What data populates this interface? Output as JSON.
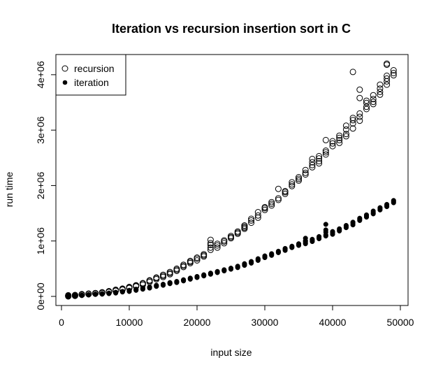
{
  "chart_data": {
    "type": "scatter",
    "title": "Iteration vs recursion insertion sort in C",
    "xlabel": "input size",
    "ylabel": "run time",
    "xlim": [
      0,
      50000
    ],
    "ylim": [
      0,
      4200000
    ],
    "xticks": [
      0,
      10000,
      20000,
      30000,
      40000,
      50000
    ],
    "xtick_labels": [
      "0",
      "10000",
      "20000",
      "30000",
      "40000",
      "50000"
    ],
    "yticks": [
      0,
      1000000,
      2000000,
      3000000,
      4000000
    ],
    "ytick_labels": [
      "0e+00",
      "1e+06",
      "2e+06",
      "3e+06",
      "4e+06"
    ],
    "grid": false,
    "legend_position": "top-left",
    "series": [
      {
        "name": "recursion",
        "marker": "open-circle",
        "x": [
          1000,
          1000,
          1000,
          2000,
          2000,
          2000,
          3000,
          3000,
          3000,
          4000,
          4000,
          4000,
          5000,
          5000,
          5000,
          6000,
          6000,
          6000,
          7000,
          7000,
          7000,
          8000,
          8000,
          8000,
          9000,
          9000,
          9000,
          10000,
          10000,
          10000,
          11000,
          11000,
          11000,
          12000,
          12000,
          12000,
          13000,
          13000,
          13000,
          14000,
          14000,
          14000,
          15000,
          15000,
          15000,
          16000,
          16000,
          16000,
          17000,
          17000,
          17000,
          18000,
          18000,
          18000,
          19000,
          19000,
          19000,
          20000,
          20000,
          20000,
          21000,
          21000,
          21000,
          22000,
          22000,
          22000,
          22000,
          22000,
          23000,
          23000,
          23000,
          24000,
          24000,
          24000,
          25000,
          25000,
          25000,
          26000,
          26000,
          26000,
          27000,
          27000,
          27000,
          27000,
          28000,
          28000,
          28000,
          29000,
          29000,
          29000,
          30000,
          30000,
          30000,
          31000,
          31000,
          31000,
          32000,
          32000,
          32000,
          33000,
          33000,
          33000,
          34000,
          34000,
          34000,
          35000,
          35000,
          35000,
          36000,
          36000,
          36000,
          37000,
          37000,
          37000,
          37000,
          38000,
          38000,
          38000,
          38000,
          39000,
          39000,
          39000,
          39000,
          40000,
          40000,
          40000,
          41000,
          41000,
          41000,
          41000,
          42000,
          42000,
          42000,
          42000,
          43000,
          43000,
          43000,
          43000,
          43000,
          44000,
          44000,
          44000,
          44000,
          44000,
          45000,
          45000,
          45000,
          45000,
          46000,
          46000,
          46000,
          46000,
          47000,
          47000,
          47000,
          47000,
          48000,
          48000,
          48000,
          48000,
          48000,
          48000,
          49000,
          49000,
          49000
        ],
        "y": [
          0,
          10000,
          20000,
          10000,
          20000,
          25000,
          30000,
          35000,
          40000,
          40000,
          45000,
          50000,
          50000,
          55000,
          60000,
          60000,
          70000,
          75000,
          80000,
          90000,
          95000,
          100000,
          110000,
          120000,
          120000,
          130000,
          140000,
          150000,
          160000,
          170000,
          180000,
          190000,
          200000,
          210000,
          230000,
          240000,
          260000,
          280000,
          290000,
          310000,
          330000,
          340000,
          350000,
          370000,
          390000,
          400000,
          420000,
          440000,
          460000,
          480000,
          500000,
          530000,
          550000,
          570000,
          600000,
          620000,
          640000,
          650000,
          680000,
          700000,
          720000,
          740000,
          760000,
          840000,
          880000,
          930000,
          960000,
          1020000,
          880000,
          920000,
          950000,
          960000,
          990000,
          1010000,
          1050000,
          1070000,
          1090000,
          1130000,
          1150000,
          1170000,
          1220000,
          1240000,
          1260000,
          1280000,
          1330000,
          1370000,
          1400000,
          1420000,
          1460000,
          1520000,
          1560000,
          1590000,
          1610000,
          1640000,
          1670000,
          1700000,
          1740000,
          1770000,
          1940000,
          1850000,
          1880000,
          1900000,
          1990000,
          2020000,
          2060000,
          2090000,
          2120000,
          2150000,
          2200000,
          2230000,
          2280000,
          2330000,
          2370000,
          2420000,
          2480000,
          2400000,
          2440000,
          2490000,
          2530000,
          2560000,
          2600000,
          2630000,
          2820000,
          2710000,
          2760000,
          2800000,
          2770000,
          2820000,
          2860000,
          2900000,
          2890000,
          2930000,
          3010000,
          3080000,
          3030000,
          3120000,
          3180000,
          3220000,
          4050000,
          3170000,
          3240000,
          3300000,
          3580000,
          3730000,
          3380000,
          3420000,
          3490000,
          3530000,
          3470000,
          3510000,
          3560000,
          3630000,
          3640000,
          3690000,
          3750000,
          3820000,
          3820000,
          3880000,
          3930000,
          3980000,
          4180000,
          4200000,
          3990000,
          4030000,
          4080000
        ]
      },
      {
        "name": "iteration",
        "marker": "filled-circle",
        "x": [
          1000,
          1000,
          1000,
          2000,
          2000,
          2000,
          3000,
          3000,
          3000,
          4000,
          4000,
          4000,
          5000,
          5000,
          5000,
          6000,
          6000,
          6000,
          7000,
          7000,
          7000,
          8000,
          8000,
          8000,
          9000,
          9000,
          9000,
          10000,
          10000,
          10000,
          11000,
          11000,
          11000,
          12000,
          12000,
          12000,
          13000,
          13000,
          13000,
          14000,
          14000,
          14000,
          15000,
          15000,
          15000,
          16000,
          16000,
          16000,
          17000,
          17000,
          17000,
          18000,
          18000,
          18000,
          19000,
          19000,
          19000,
          20000,
          20000,
          20000,
          21000,
          21000,
          21000,
          22000,
          22000,
          22000,
          23000,
          23000,
          23000,
          24000,
          24000,
          24000,
          25000,
          25000,
          25000,
          26000,
          26000,
          26000,
          27000,
          27000,
          27000,
          28000,
          28000,
          28000,
          29000,
          29000,
          29000,
          30000,
          30000,
          30000,
          31000,
          31000,
          31000,
          32000,
          32000,
          32000,
          33000,
          33000,
          33000,
          34000,
          34000,
          34000,
          35000,
          35000,
          35000,
          36000,
          36000,
          36000,
          36000,
          36000,
          37000,
          37000,
          37000,
          38000,
          38000,
          38000,
          39000,
          39000,
          39000,
          39000,
          39000,
          40000,
          40000,
          40000,
          41000,
          41000,
          41000,
          42000,
          42000,
          42000,
          43000,
          43000,
          43000,
          44000,
          44000,
          44000,
          45000,
          45000,
          45000,
          46000,
          46000,
          46000,
          47000,
          47000,
          47000,
          48000,
          48000,
          48000,
          49000,
          49000,
          49000
        ],
        "y": [
          0,
          5000,
          10000,
          5000,
          10000,
          15000,
          15000,
          20000,
          25000,
          25000,
          30000,
          32000,
          35000,
          40000,
          42000,
          40000,
          45000,
          50000,
          50000,
          55000,
          60000,
          60000,
          70000,
          75000,
          80000,
          85000,
          90000,
          90000,
          100000,
          110000,
          110000,
          120000,
          130000,
          130000,
          140000,
          150000,
          150000,
          160000,
          170000,
          180000,
          190000,
          200000,
          200000,
          210000,
          220000,
          230000,
          240000,
          250000,
          250000,
          260000,
          270000,
          280000,
          290000,
          300000,
          310000,
          320000,
          330000,
          340000,
          350000,
          360000,
          370000,
          380000,
          390000,
          400000,
          410000,
          420000,
          430000,
          440000,
          450000,
          460000,
          470000,
          480000,
          490000,
          500000,
          510000,
          520000,
          530000,
          545000,
          560000,
          575000,
          590000,
          600000,
          615000,
          630000,
          650000,
          665000,
          680000,
          700000,
          715000,
          730000,
          740000,
          755000,
          770000,
          790000,
          800000,
          815000,
          830000,
          850000,
          865000,
          880000,
          890000,
          905000,
          920000,
          930000,
          950000,
          1000000,
          950000,
          970000,
          1000000,
          1050000,
          990000,
          1010000,
          1030000,
          1040000,
          1060000,
          1080000,
          1090000,
          1110000,
          1160000,
          1200000,
          1300000,
          1120000,
          1150000,
          1170000,
          1180000,
          1200000,
          1220000,
          1240000,
          1260000,
          1280000,
          1290000,
          1320000,
          1340000,
          1370000,
          1390000,
          1410000,
          1430000,
          1450000,
          1470000,
          1490000,
          1510000,
          1540000,
          1560000,
          1580000,
          1600000,
          1620000,
          1640000,
          1660000,
          1690000,
          1710000,
          1730000
        ]
      }
    ]
  }
}
